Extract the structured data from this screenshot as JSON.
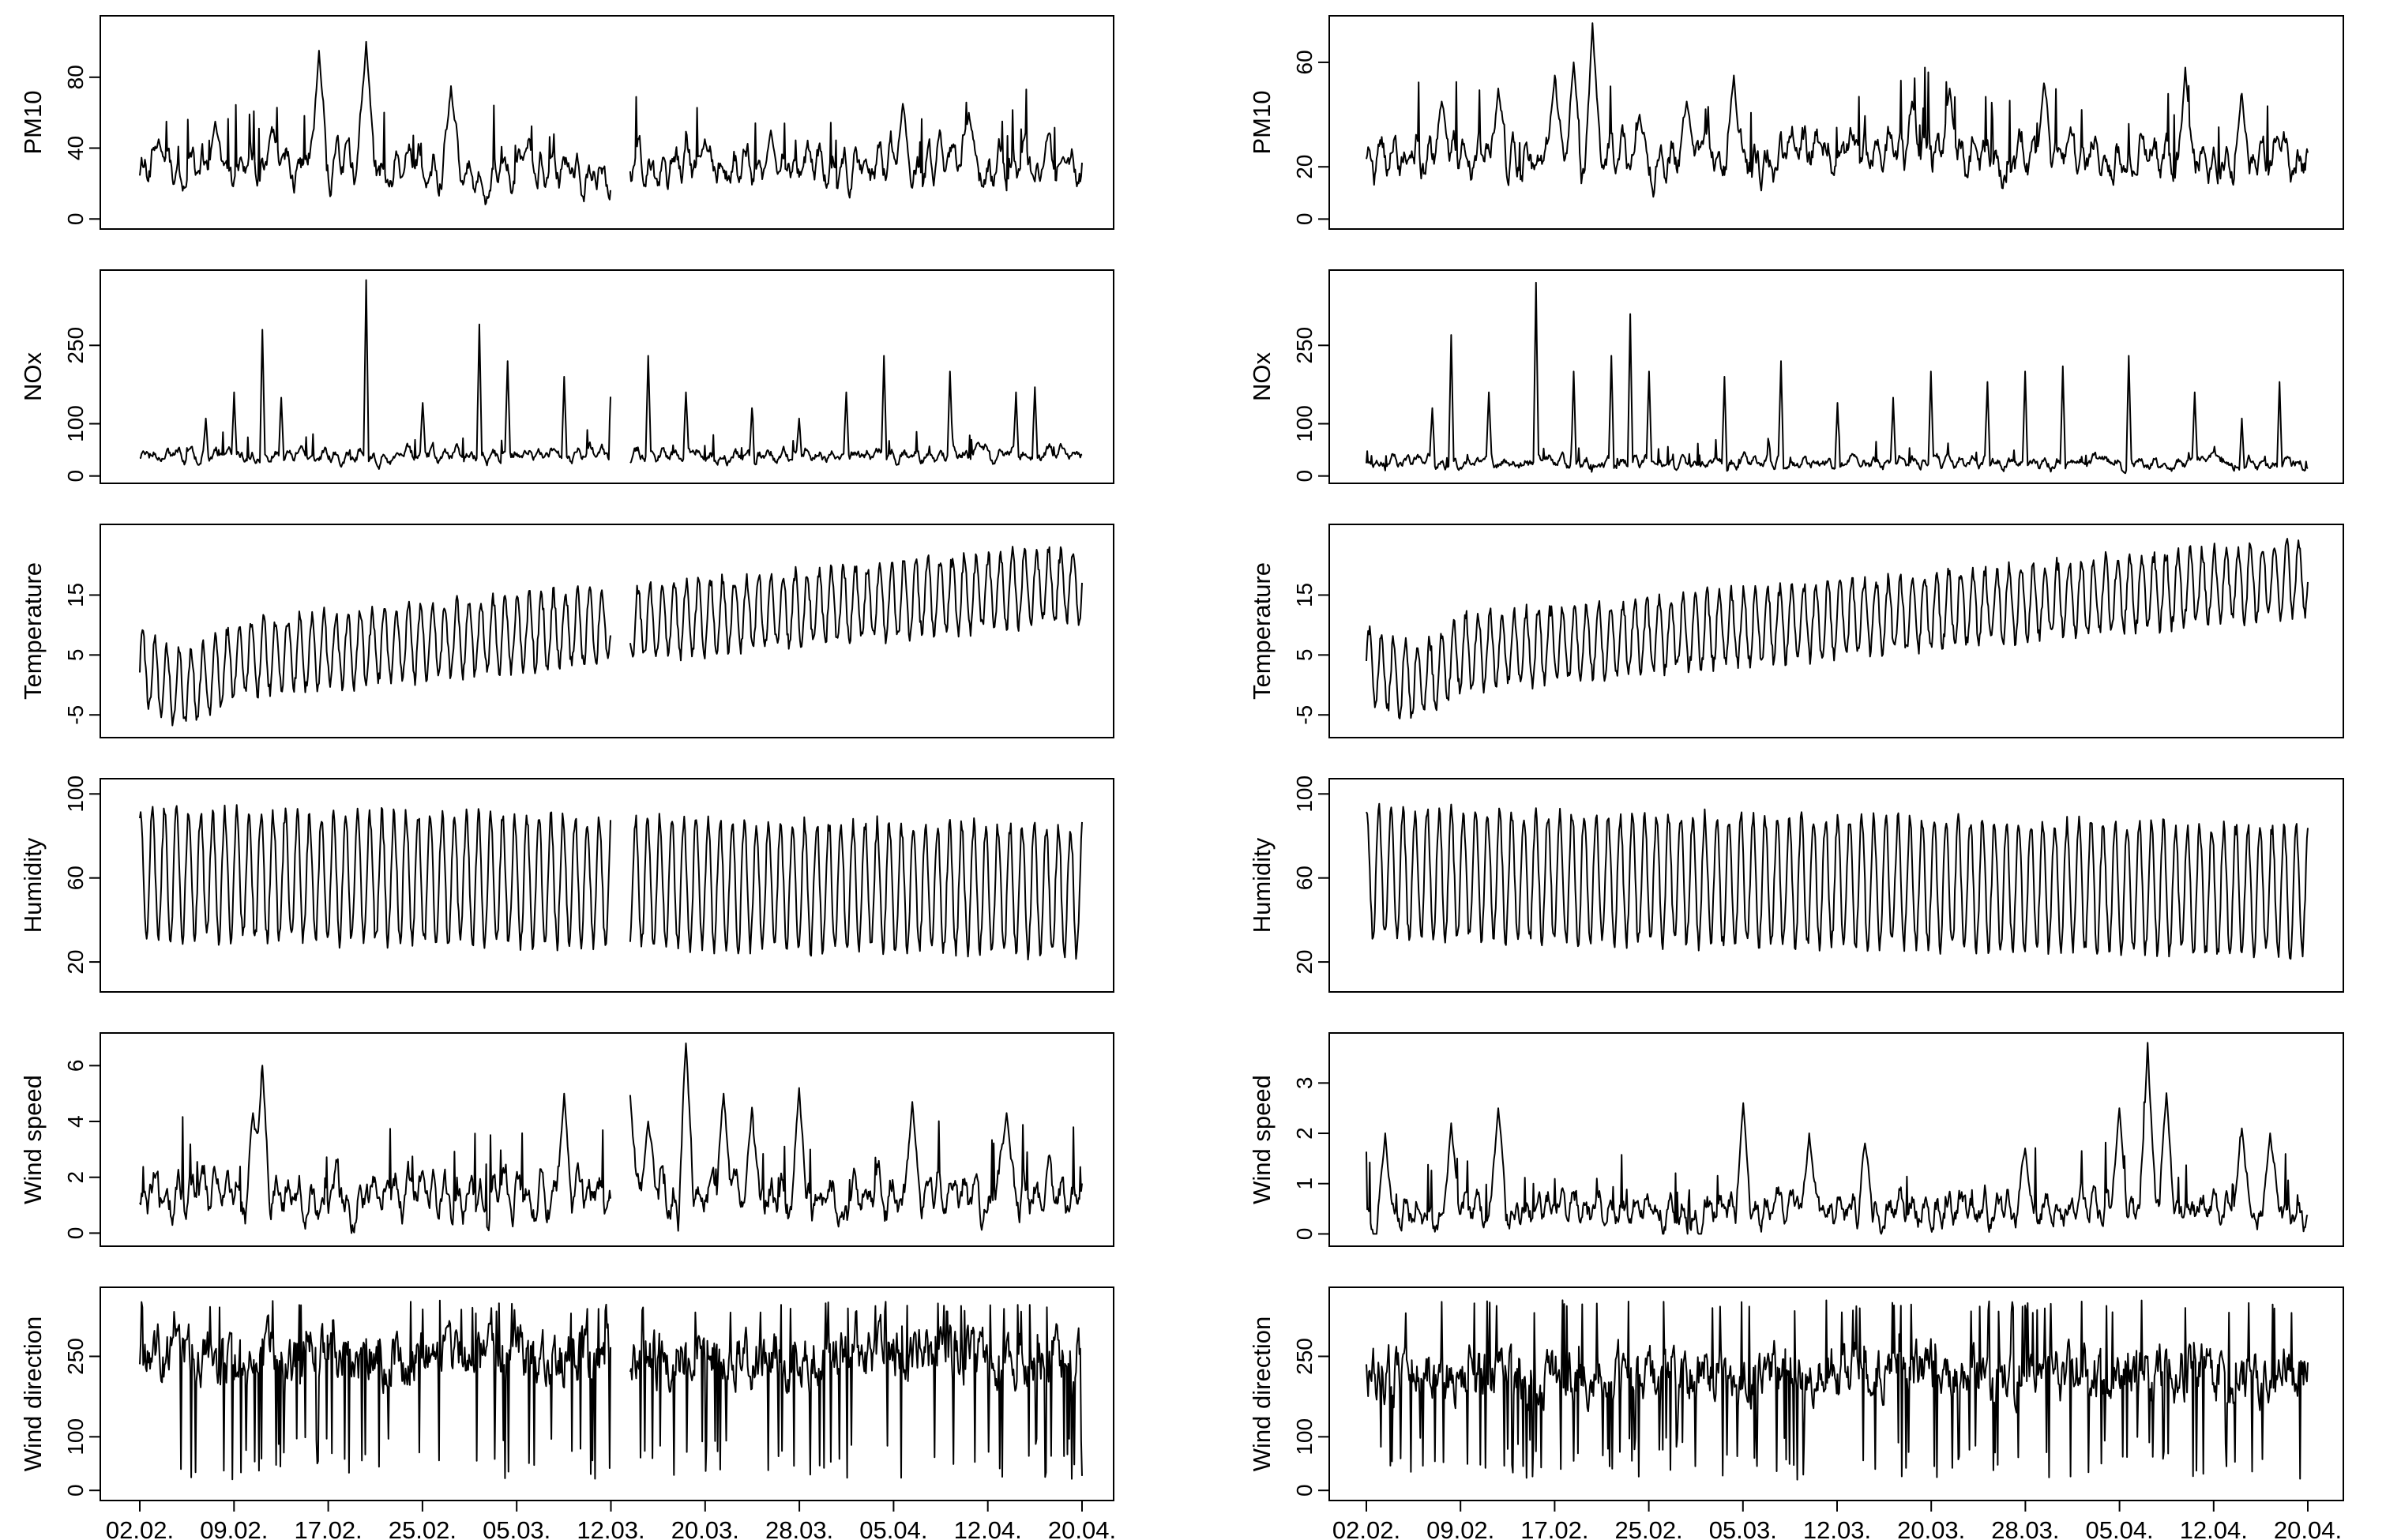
{
  "figure": {
    "x_tick_labels": [
      "02.02.",
      "09.02.",
      "17.02.",
      "25.02.",
      "05.03.",
      "12.03.",
      "20.03.",
      "28.03.",
      "05.04.",
      "12.04.",
      "20.04."
    ],
    "line_color": "#000000",
    "frame_color": "#000000"
  },
  "chart_data": [
    {
      "type": "line",
      "column": "left",
      "variable": "PM10",
      "ylabel": "PM10",
      "yticks": [
        "0",
        "40",
        "80"
      ],
      "ylim": [
        -3,
        112
      ],
      "range": [
        0,
        108
      ],
      "base": 30,
      "amp": 16,
      "spikes": [
        [
          0.02,
          45
        ],
        [
          0.08,
          55
        ],
        [
          0.14,
          52
        ],
        [
          0.19,
          95
        ],
        [
          0.24,
          100
        ],
        [
          0.33,
          75
        ],
        [
          0.41,
          40
        ],
        [
          0.53,
          20
        ],
        [
          0.6,
          45
        ],
        [
          0.67,
          50
        ],
        [
          0.81,
          65
        ],
        [
          0.88,
          60
        ],
        [
          0.98,
          35
        ]
      ],
      "has_gap": true
    },
    {
      "type": "line",
      "column": "left",
      "variable": "NOx",
      "ylabel": "NOx",
      "yticks": [
        "0",
        "100",
        "250"
      ],
      "ylim": [
        -5,
        385
      ],
      "range": [
        0,
        380
      ],
      "base": 40,
      "amp": 20,
      "spikes": [
        [
          0.07,
          110
        ],
        [
          0.1,
          160
        ],
        [
          0.13,
          280
        ],
        [
          0.15,
          150
        ],
        [
          0.24,
          375
        ],
        [
          0.3,
          140
        ],
        [
          0.36,
          290
        ],
        [
          0.39,
          220
        ],
        [
          0.45,
          190
        ],
        [
          0.5,
          200
        ],
        [
          0.54,
          230
        ],
        [
          0.58,
          160
        ],
        [
          0.65,
          130
        ],
        [
          0.7,
          110
        ],
        [
          0.75,
          160
        ],
        [
          0.79,
          230
        ],
        [
          0.86,
          200
        ],
        [
          0.93,
          160
        ],
        [
          0.95,
          170
        ]
      ],
      "has_gap": true
    },
    {
      "type": "line",
      "column": "left",
      "variable": "Temperature",
      "ylabel": "Temperature",
      "yticks": [
        "-5",
        "5",
        "15"
      ],
      "ylim": [
        -8,
        26
      ],
      "range": [
        -8,
        25
      ],
      "base": 3,
      "amp": 6,
      "spikes": [],
      "has_gap": true
    },
    {
      "type": "line",
      "column": "left",
      "variable": "Humidity",
      "ylabel": "Humidity",
      "yticks": [
        "20",
        "60",
        "100"
      ],
      "ylim": [
        8,
        105
      ],
      "range": [
        8,
        103
      ],
      "base": 62,
      "amp": 30,
      "spikes": [],
      "has_gap": true
    },
    {
      "type": "line",
      "column": "left",
      "variable": "Wind speed",
      "ylabel": "Wind speed",
      "yticks": [
        "0",
        "2",
        "4",
        "6"
      ],
      "ylim": [
        -0.3,
        7
      ],
      "range": [
        0,
        6.8
      ],
      "base": 1.3,
      "amp": 1.2,
      "spikes": [
        [
          0.12,
          4.3
        ],
        [
          0.13,
          6
        ],
        [
          0.45,
          5
        ],
        [
          0.52,
          5.3
        ],
        [
          0.54,
          4
        ],
        [
          0.58,
          6.8
        ],
        [
          0.62,
          5
        ],
        [
          0.65,
          4.5
        ],
        [
          0.7,
          5.2
        ],
        [
          0.82,
          4.7
        ],
        [
          0.92,
          4.3
        ]
      ],
      "has_gap": true
    },
    {
      "type": "line",
      "column": "left",
      "variable": "Wind direction",
      "ylabel": "Wind direction",
      "yticks": [
        "0",
        "100",
        "250"
      ],
      "ylim": [
        -10,
        370
      ],
      "range": [
        0,
        360
      ],
      "base": 250,
      "amp": 150,
      "spikes": [],
      "has_gap": true
    },
    {
      "type": "line",
      "column": "right",
      "variable": "PM10",
      "ylabel": "PM10",
      "yticks": [
        "0",
        "20",
        "60"
      ],
      "ylim": [
        -2,
        76
      ],
      "range": [
        0,
        75
      ],
      "base": 24,
      "amp": 12,
      "spikes": [
        [
          0.08,
          45
        ],
        [
          0.14,
          50
        ],
        [
          0.2,
          55
        ],
        [
          0.22,
          60
        ],
        [
          0.24,
          75
        ],
        [
          0.29,
          40
        ],
        [
          0.34,
          45
        ],
        [
          0.39,
          55
        ],
        [
          0.58,
          45
        ],
        [
          0.62,
          50
        ],
        [
          0.72,
          52
        ],
        [
          0.87,
          58
        ],
        [
          0.93,
          48
        ]
      ],
      "has_gap": false
    },
    {
      "type": "line",
      "column": "right",
      "variable": "NOx",
      "ylabel": "NOx",
      "yticks": [
        "0",
        "100",
        "250"
      ],
      "ylim": [
        -5,
        385
      ],
      "range": [
        0,
        380
      ],
      "base": 25,
      "amp": 18,
      "spikes": [
        [
          0.07,
          130
        ],
        [
          0.09,
          270
        ],
        [
          0.13,
          160
        ],
        [
          0.18,
          370
        ],
        [
          0.22,
          200
        ],
        [
          0.26,
          230
        ],
        [
          0.28,
          310
        ],
        [
          0.3,
          200
        ],
        [
          0.38,
          190
        ],
        [
          0.44,
          220
        ],
        [
          0.5,
          140
        ],
        [
          0.56,
          150
        ],
        [
          0.6,
          200
        ],
        [
          0.66,
          180
        ],
        [
          0.7,
          200
        ],
        [
          0.74,
          210
        ],
        [
          0.81,
          230
        ],
        [
          0.88,
          160
        ],
        [
          0.93,
          110
        ],
        [
          0.97,
          180
        ]
      ],
      "has_gap": false
    },
    {
      "type": "line",
      "column": "right",
      "variable": "Temperature",
      "ylabel": "Temperature",
      "yticks": [
        "-5",
        "5",
        "15"
      ],
      "ylim": [
        -8,
        26
      ],
      "range": [
        -8,
        25
      ],
      "base": 4,
      "amp": 6,
      "spikes": [],
      "has_gap": false
    },
    {
      "type": "line",
      "column": "right",
      "variable": "Humidity",
      "ylabel": "Humidity",
      "yticks": [
        "20",
        "60",
        "100"
      ],
      "ylim": [
        8,
        105
      ],
      "range": [
        8,
        103
      ],
      "base": 62,
      "amp": 30,
      "spikes": [],
      "has_gap": false
    },
    {
      "type": "line",
      "column": "right",
      "variable": "Wind speed",
      "ylabel": "Wind speed",
      "yticks": [
        "0",
        "1",
        "2",
        "3"
      ],
      "ylim": [
        -0.15,
        3.9
      ],
      "range": [
        0,
        3.8
      ],
      "base": 0.5,
      "amp": 0.5,
      "spikes": [
        [
          0.02,
          2
        ],
        [
          0.09,
          2.2
        ],
        [
          0.14,
          2.5
        ],
        [
          0.4,
          2.6
        ],
        [
          0.47,
          2
        ],
        [
          0.53,
          1.8
        ],
        [
          0.7,
          1.7
        ],
        [
          0.8,
          2.5
        ],
        [
          0.83,
          3.8
        ],
        [
          0.85,
          2.8
        ],
        [
          0.93,
          2.1
        ],
        [
          0.96,
          2
        ]
      ],
      "has_gap": false
    },
    {
      "type": "line",
      "column": "right",
      "variable": "Wind direction",
      "ylabel": "Wind direction",
      "yticks": [
        "0",
        "100",
        "250"
      ],
      "ylim": [
        -10,
        370
      ],
      "range": [
        0,
        360
      ],
      "base": 220,
      "amp": 130,
      "spikes": [],
      "has_gap": false
    }
  ]
}
